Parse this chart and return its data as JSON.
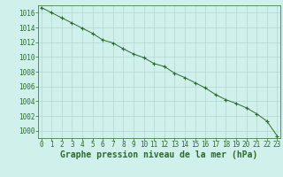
{
  "x": [
    0,
    1,
    2,
    3,
    4,
    5,
    6,
    7,
    8,
    9,
    10,
    11,
    12,
    13,
    14,
    15,
    16,
    17,
    18,
    19,
    20,
    21,
    22,
    23
  ],
  "y": [
    1016.7,
    1016.0,
    1015.3,
    1014.6,
    1013.9,
    1013.2,
    1012.3,
    1011.9,
    1011.1,
    1010.4,
    1009.9,
    1009.1,
    1008.7,
    1007.8,
    1007.2,
    1006.5,
    1005.8,
    1004.9,
    1004.2,
    1003.7,
    1003.1,
    1002.3,
    1001.3,
    999.3
  ],
  "ylim": [
    999.0,
    1017.0
  ],
  "yticks": [
    1000,
    1002,
    1004,
    1006,
    1008,
    1010,
    1012,
    1014,
    1016
  ],
  "xlim": [
    -0.3,
    23.3
  ],
  "xticks": [
    0,
    1,
    2,
    3,
    4,
    5,
    6,
    7,
    8,
    9,
    10,
    11,
    12,
    13,
    14,
    15,
    16,
    17,
    18,
    19,
    20,
    21,
    22,
    23
  ],
  "xlabel": "Graphe pression niveau de la mer (hPa)",
  "line_color": "#2d6a2d",
  "marker_color": "#2d6a2d",
  "bg_color": "#cff0eb",
  "grid_color": "#b0d9d0",
  "tick_label_color": "#2d6a2d",
  "xlabel_color": "#2d6a2d",
  "tick_fontsize": 5.5,
  "xlabel_fontsize": 7.0,
  "figwidth": 3.2,
  "figheight": 2.0,
  "dpi": 100
}
